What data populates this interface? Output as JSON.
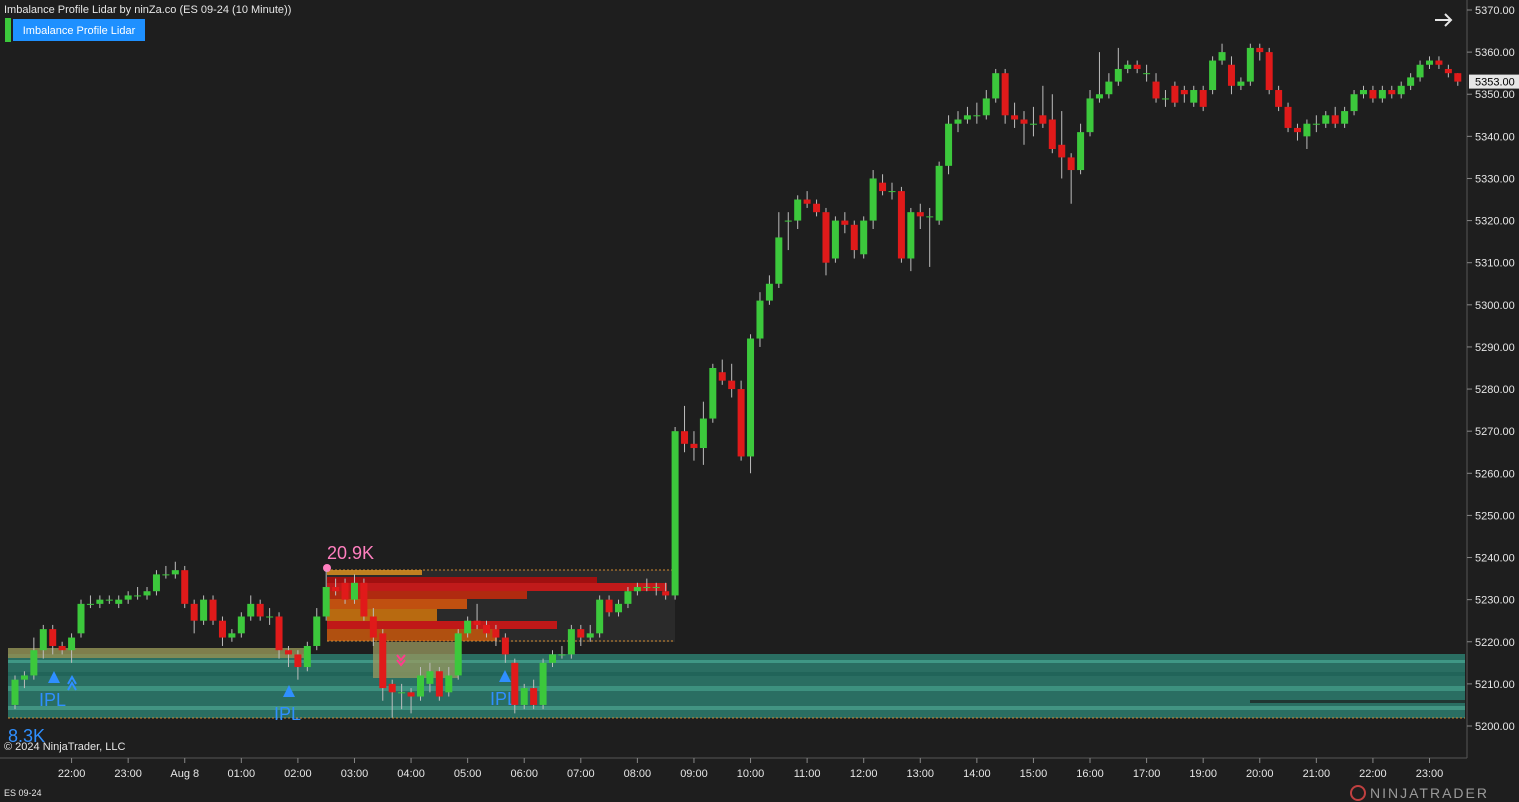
{
  "chart_data": {
    "type": "candlestick",
    "title": "Imbalance Profile Lidar by ninZa.co (ES 09-24 (10 Minute))",
    "indicator_button": "Imbalance Profile Lidar",
    "instrument": "ES 09-24",
    "copyright": "© 2024 NinjaTrader, LLC",
    "brand": "NINJATRADER",
    "annotations": [
      "20.9K",
      "8.3K",
      "IPL",
      "IPL",
      "IPL"
    ],
    "up_color": "#3cc83c",
    "down_color": "#e01a1a",
    "ylim": [
      5197,
      5372
    ],
    "yticks": [
      {
        "value": 5200,
        "label": "5200.00"
      },
      {
        "value": 5210,
        "label": "5210.00"
      },
      {
        "value": 5220,
        "label": "5220.00"
      },
      {
        "value": 5230,
        "label": "5230.00"
      },
      {
        "value": 5240,
        "label": "5240.00"
      },
      {
        "value": 5250,
        "label": "5250.00"
      },
      {
        "value": 5260,
        "label": "5260.00"
      },
      {
        "value": 5270,
        "label": "5270.00"
      },
      {
        "value": 5280,
        "label": "5280.00"
      },
      {
        "value": 5290,
        "label": "5290.00"
      },
      {
        "value": 5300,
        "label": "5300.00"
      },
      {
        "value": 5310,
        "label": "5310.00"
      },
      {
        "value": 5320,
        "label": "5320.00"
      },
      {
        "value": 5330,
        "label": "5330.00"
      },
      {
        "value": 5340,
        "label": "5340.00"
      },
      {
        "value": 5350,
        "label": "5350.00"
      },
      {
        "value": 5360,
        "label": "5360.00"
      },
      {
        "value": 5370,
        "label": "5370.00"
      }
    ],
    "last_price": {
      "value": 5353,
      "label": "5353.00"
    },
    "categories": [
      null,
      null,
      null,
      null,
      null,
      null,
      "22:00",
      null,
      null,
      null,
      null,
      null,
      "23:00",
      null,
      null,
      null,
      null,
      null,
      "Aug 8",
      null,
      null,
      null,
      null,
      null,
      "01:00",
      null,
      null,
      null,
      null,
      null,
      "02:00",
      null,
      null,
      null,
      null,
      null,
      "03:00",
      null,
      null,
      null,
      null,
      null,
      "04:00",
      null,
      null,
      null,
      null,
      null,
      "05:00",
      null,
      null,
      null,
      null,
      null,
      "06:00",
      null,
      null,
      null,
      null,
      null,
      "07:00",
      null,
      null,
      null,
      null,
      null,
      "08:00",
      null,
      null,
      null,
      null,
      null,
      "09:00",
      null,
      null,
      null,
      null,
      null,
      "10:00",
      null,
      null,
      null,
      null,
      null,
      "11:00",
      null,
      null,
      null,
      null,
      null,
      "12:00",
      null,
      null,
      null,
      null,
      null,
      "13:00",
      null,
      null,
      null,
      null,
      null,
      "14:00",
      null,
      null,
      null,
      null,
      null,
      "15:00",
      null,
      null,
      null,
      null,
      null,
      "16:00",
      null,
      null,
      null,
      null,
      null,
      "17:00",
      null,
      null,
      null,
      null,
      null,
      "19:00",
      null,
      null,
      null,
      null,
      null,
      "20:00",
      null,
      null,
      null,
      null,
      null,
      "21:00",
      null,
      null,
      null,
      null,
      null,
      "22:00",
      null,
      null,
      null,
      null,
      null,
      "23:00",
      null,
      null,
      null
    ],
    "open": [
      5205,
      5211,
      5212,
      5218,
      5223,
      5219,
      5218,
      5222,
      5229,
      5229,
      5230,
      5229,
      5230,
      5231,
      5231,
      5232,
      5236,
      5236,
      5237,
      5229,
      5225,
      5230,
      5225,
      5221,
      5222,
      5226,
      5229,
      5226,
      5226,
      5218,
      5217,
      5214,
      5219,
      5226,
      5233,
      5234,
      5230,
      5234,
      5226,
      5222,
      5210,
      5208,
      5208,
      5207,
      5210,
      5213,
      5208,
      5212,
      5222,
      5225,
      5224,
      5223,
      5221,
      5215,
      5205,
      5209,
      5205,
      5215,
      5217,
      5217,
      5223,
      5221,
      5222,
      5230,
      5227,
      5229,
      5232,
      5233,
      5233,
      5232,
      5231,
      5270,
      5267,
      5266,
      5273,
      5284,
      5282,
      5280,
      5264,
      5292,
      5301,
      5305,
      5320,
      5320,
      5325,
      5324,
      5322,
      5311,
      5320,
      5319,
      5312,
      5320,
      5329,
      5327,
      5327,
      5311,
      5322,
      5321,
      5320,
      5333,
      5343,
      5344,
      5345,
      5345,
      5349,
      5355,
      5345,
      5344,
      5343,
      5345,
      5344,
      5338,
      5335,
      5332,
      5341,
      5349,
      5350,
      5353,
      5356,
      5357,
      5355,
      5353,
      5349,
      5352,
      5351,
      5348,
      5351,
      5351,
      5358,
      5357,
      5352,
      5353,
      5361,
      5360,
      5351,
      5347,
      5342,
      5340,
      5343,
      5343,
      5345,
      5343,
      5346,
      5350,
      5351,
      5349,
      5351,
      5350,
      5352,
      5354,
      5357,
      5358,
      5356,
      5355
    ],
    "high": [
      5212,
      5213,
      5221,
      5224,
      5224,
      5220,
      5222,
      5230,
      5231,
      5231,
      5231,
      5231,
      5232,
      5233,
      5233,
      5237,
      5238,
      5239,
      5238,
      5230,
      5231,
      5231,
      5226,
      5223,
      5227,
      5231,
      5230,
      5228,
      5227,
      5219,
      5218,
      5220,
      5228,
      5237,
      5235,
      5235,
      5236,
      5235,
      5228,
      5223,
      5211,
      5210,
      5209,
      5214,
      5215,
      5214,
      5214,
      5223,
      5226,
      5229,
      5225,
      5224,
      5222,
      5216,
      5210,
      5211,
      5216,
      5218,
      5219,
      5224,
      5224,
      5224,
      5231,
      5231,
      5230,
      5233,
      5234,
      5235,
      5234,
      5234,
      5271,
      5276,
      5270,
      5277,
      5286,
      5287,
      5286,
      5282,
      5293,
      5303,
      5307,
      5322,
      5322,
      5326,
      5327,
      5325,
      5323,
      5321,
      5322,
      5320,
      5321,
      5332,
      5331,
      5329,
      5328,
      5323,
      5324,
      5323,
      5334,
      5345,
      5346,
      5347,
      5348,
      5351,
      5356,
      5356,
      5348,
      5346,
      5347,
      5352,
      5350,
      5346,
      5336,
      5343,
      5351,
      5360,
      5355,
      5361,
      5358,
      5358,
      5357,
      5355,
      5351,
      5353,
      5352,
      5352,
      5352,
      5359,
      5362,
      5359,
      5354,
      5362,
      5362,
      5361,
      5352,
      5348,
      5343,
      5344,
      5345,
      5346,
      5347,
      5347,
      5351,
      5352,
      5352,
      5352,
      5352,
      5353,
      5355,
      5358,
      5359,
      5359,
      5357,
      5355
    ],
    "low": [
      5204,
      5209,
      5211,
      5216,
      5217,
      5217,
      5215,
      5221,
      5228,
      5228,
      5229,
      5228,
      5229,
      5230,
      5230,
      5231,
      5235,
      5235,
      5228,
      5222,
      5224,
      5224,
      5219,
      5220,
      5221,
      5225,
      5225,
      5224,
      5216,
      5214,
      5211,
      5213,
      5218,
      5225,
      5231,
      5229,
      5229,
      5225,
      5219,
      5206,
      5202,
      5204,
      5203,
      5206,
      5208,
      5206,
      5207,
      5211,
      5221,
      5223,
      5221,
      5219,
      5215,
      5203,
      5204,
      5204,
      5204,
      5214,
      5216,
      5216,
      5219,
      5220,
      5221,
      5226,
      5226,
      5228,
      5231,
      5232,
      5231,
      5230,
      5230,
      5265,
      5263,
      5262,
      5272,
      5281,
      5278,
      5263,
      5260,
      5290,
      5300,
      5304,
      5313,
      5318,
      5323,
      5321,
      5307,
      5310,
      5317,
      5311,
      5311,
      5318,
      5326,
      5325,
      5310,
      5308,
      5318,
      5309,
      5319,
      5331,
      5341,
      5343,
      5343,
      5344,
      5348,
      5343,
      5342,
      5338,
      5340,
      5342,
      5336,
      5330,
      5324,
      5331,
      5340,
      5348,
      5349,
      5352,
      5355,
      5355,
      5353,
      5348,
      5347,
      5347,
      5348,
      5347,
      5346,
      5350,
      5357,
      5350,
      5351,
      5352,
      5358,
      5350,
      5346,
      5341,
      5339,
      5337,
      5341,
      5342,
      5342,
      5342,
      5345,
      5349,
      5348,
      5348,
      5349,
      5349,
      5351,
      5353,
      5356,
      5356,
      5354,
      5352
    ],
    "close": [
      5211,
      5212,
      5218,
      5223,
      5219,
      5218,
      5221,
      5229,
      5229,
      5230,
      5230,
      5230,
      5231,
      5231,
      5232,
      5236,
      5236,
      5237,
      5229,
      5225,
      5230,
      5225,
      5221,
      5222,
      5226,
      5229,
      5226,
      5226,
      5218,
      5217,
      5214,
      5219,
      5226,
      5233,
      5232,
      5230,
      5234,
      5226,
      5221,
      5209,
      5208,
      5208,
      5207,
      5212,
      5213,
      5207,
      5212,
      5222,
      5225,
      5224,
      5222,
      5221,
      5217,
      5205,
      5209,
      5205,
      5215,
      5217,
      5217,
      5223,
      5221,
      5222,
      5230,
      5227,
      5229,
      5232,
      5233,
      5233,
      5233,
      5231,
      5270,
      5267,
      5266,
      5273,
      5285,
      5282,
      5280,
      5264,
      5292,
      5301,
      5305,
      5316,
      5320,
      5325,
      5324,
      5322,
      5310,
      5320,
      5319,
      5313,
      5320,
      5330,
      5327,
      5327,
      5311,
      5322,
      5321,
      5321,
      5333,
      5343,
      5344,
      5345,
      5345,
      5349,
      5355,
      5345,
      5344,
      5343,
      5343,
      5343,
      5337,
      5335,
      5332,
      5341,
      5349,
      5350,
      5353,
      5356,
      5357,
      5356,
      5355,
      5349,
      5349,
      5348,
      5350,
      5351,
      5347,
      5358,
      5360,
      5352,
      5353,
      5361,
      5360,
      5351,
      5347,
      5342,
      5341,
      5343,
      5343,
      5345,
      5343,
      5346,
      5350,
      5351,
      5349,
      5351,
      5350,
      5352,
      5354,
      5357,
      5358,
      5357,
      5355,
      5353
    ]
  }
}
